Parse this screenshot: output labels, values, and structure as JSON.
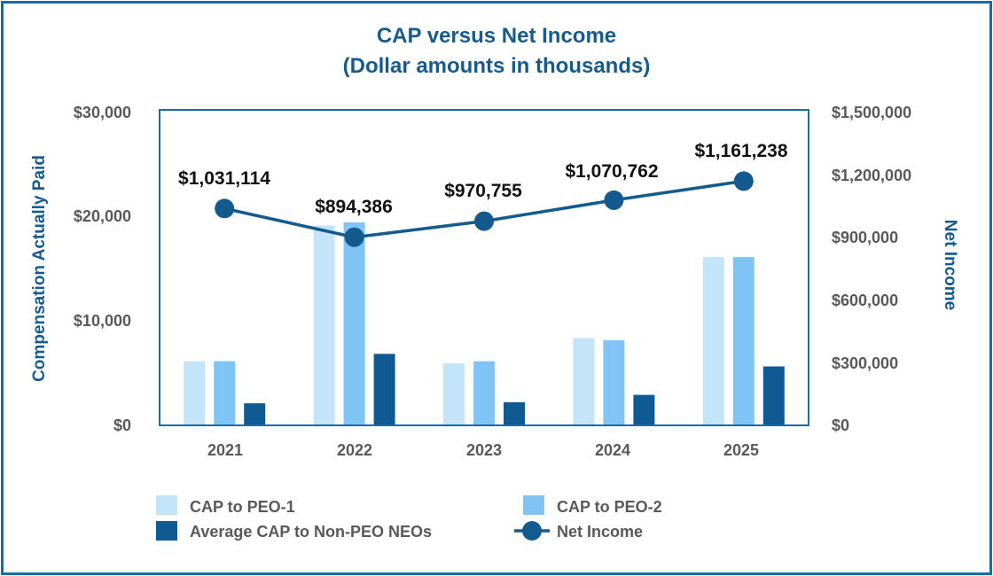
{
  "chart_data": {
    "type": "bar",
    "title": "CAP versus Net Income",
    "subtitle": "(Dollar amounts in thousands)",
    "categories": [
      "2021",
      "2022",
      "2023",
      "2024",
      "2025"
    ],
    "series": [
      {
        "name": "CAP to PEO-1",
        "axis": "left",
        "color": "#c4e4fa",
        "values": [
          6100,
          19000,
          5900,
          8300,
          16000
        ]
      },
      {
        "name": "CAP to PEO-2",
        "axis": "left",
        "color": "#7fc4f5",
        "values": [
          6100,
          19300,
          6100,
          8100,
          16000
        ]
      },
      {
        "name": "Average CAP to Non-PEO NEOs",
        "axis": "left",
        "color": "#0f5a93",
        "values": [
          2100,
          6800,
          2200,
          2900,
          5600
        ]
      },
      {
        "name": "Net Income",
        "axis": "right",
        "type": "line",
        "color": "#135a8e",
        "values": [
          1031114,
          894386,
          970755,
          1070762,
          1161238
        ]
      }
    ],
    "data_labels": [
      "$1,031,114",
      "$894,386",
      "$970,755",
      "$1,070,762",
      "$1,161,238"
    ],
    "ylabel": "Compensation Actually Paid",
    "ylim": [
      0,
      30000
    ],
    "yticks": [
      "$0",
      "$10,000",
      "$20,000",
      "$30,000"
    ],
    "y2label": "Net Income",
    "y2lim": [
      0,
      1500000
    ],
    "y2ticks": [
      "$0",
      "$300,000",
      "$600,000",
      "$900,000",
      "$1,200,000",
      "$1,500,000"
    ],
    "legend_position": "bottom",
    "grid": false
  }
}
